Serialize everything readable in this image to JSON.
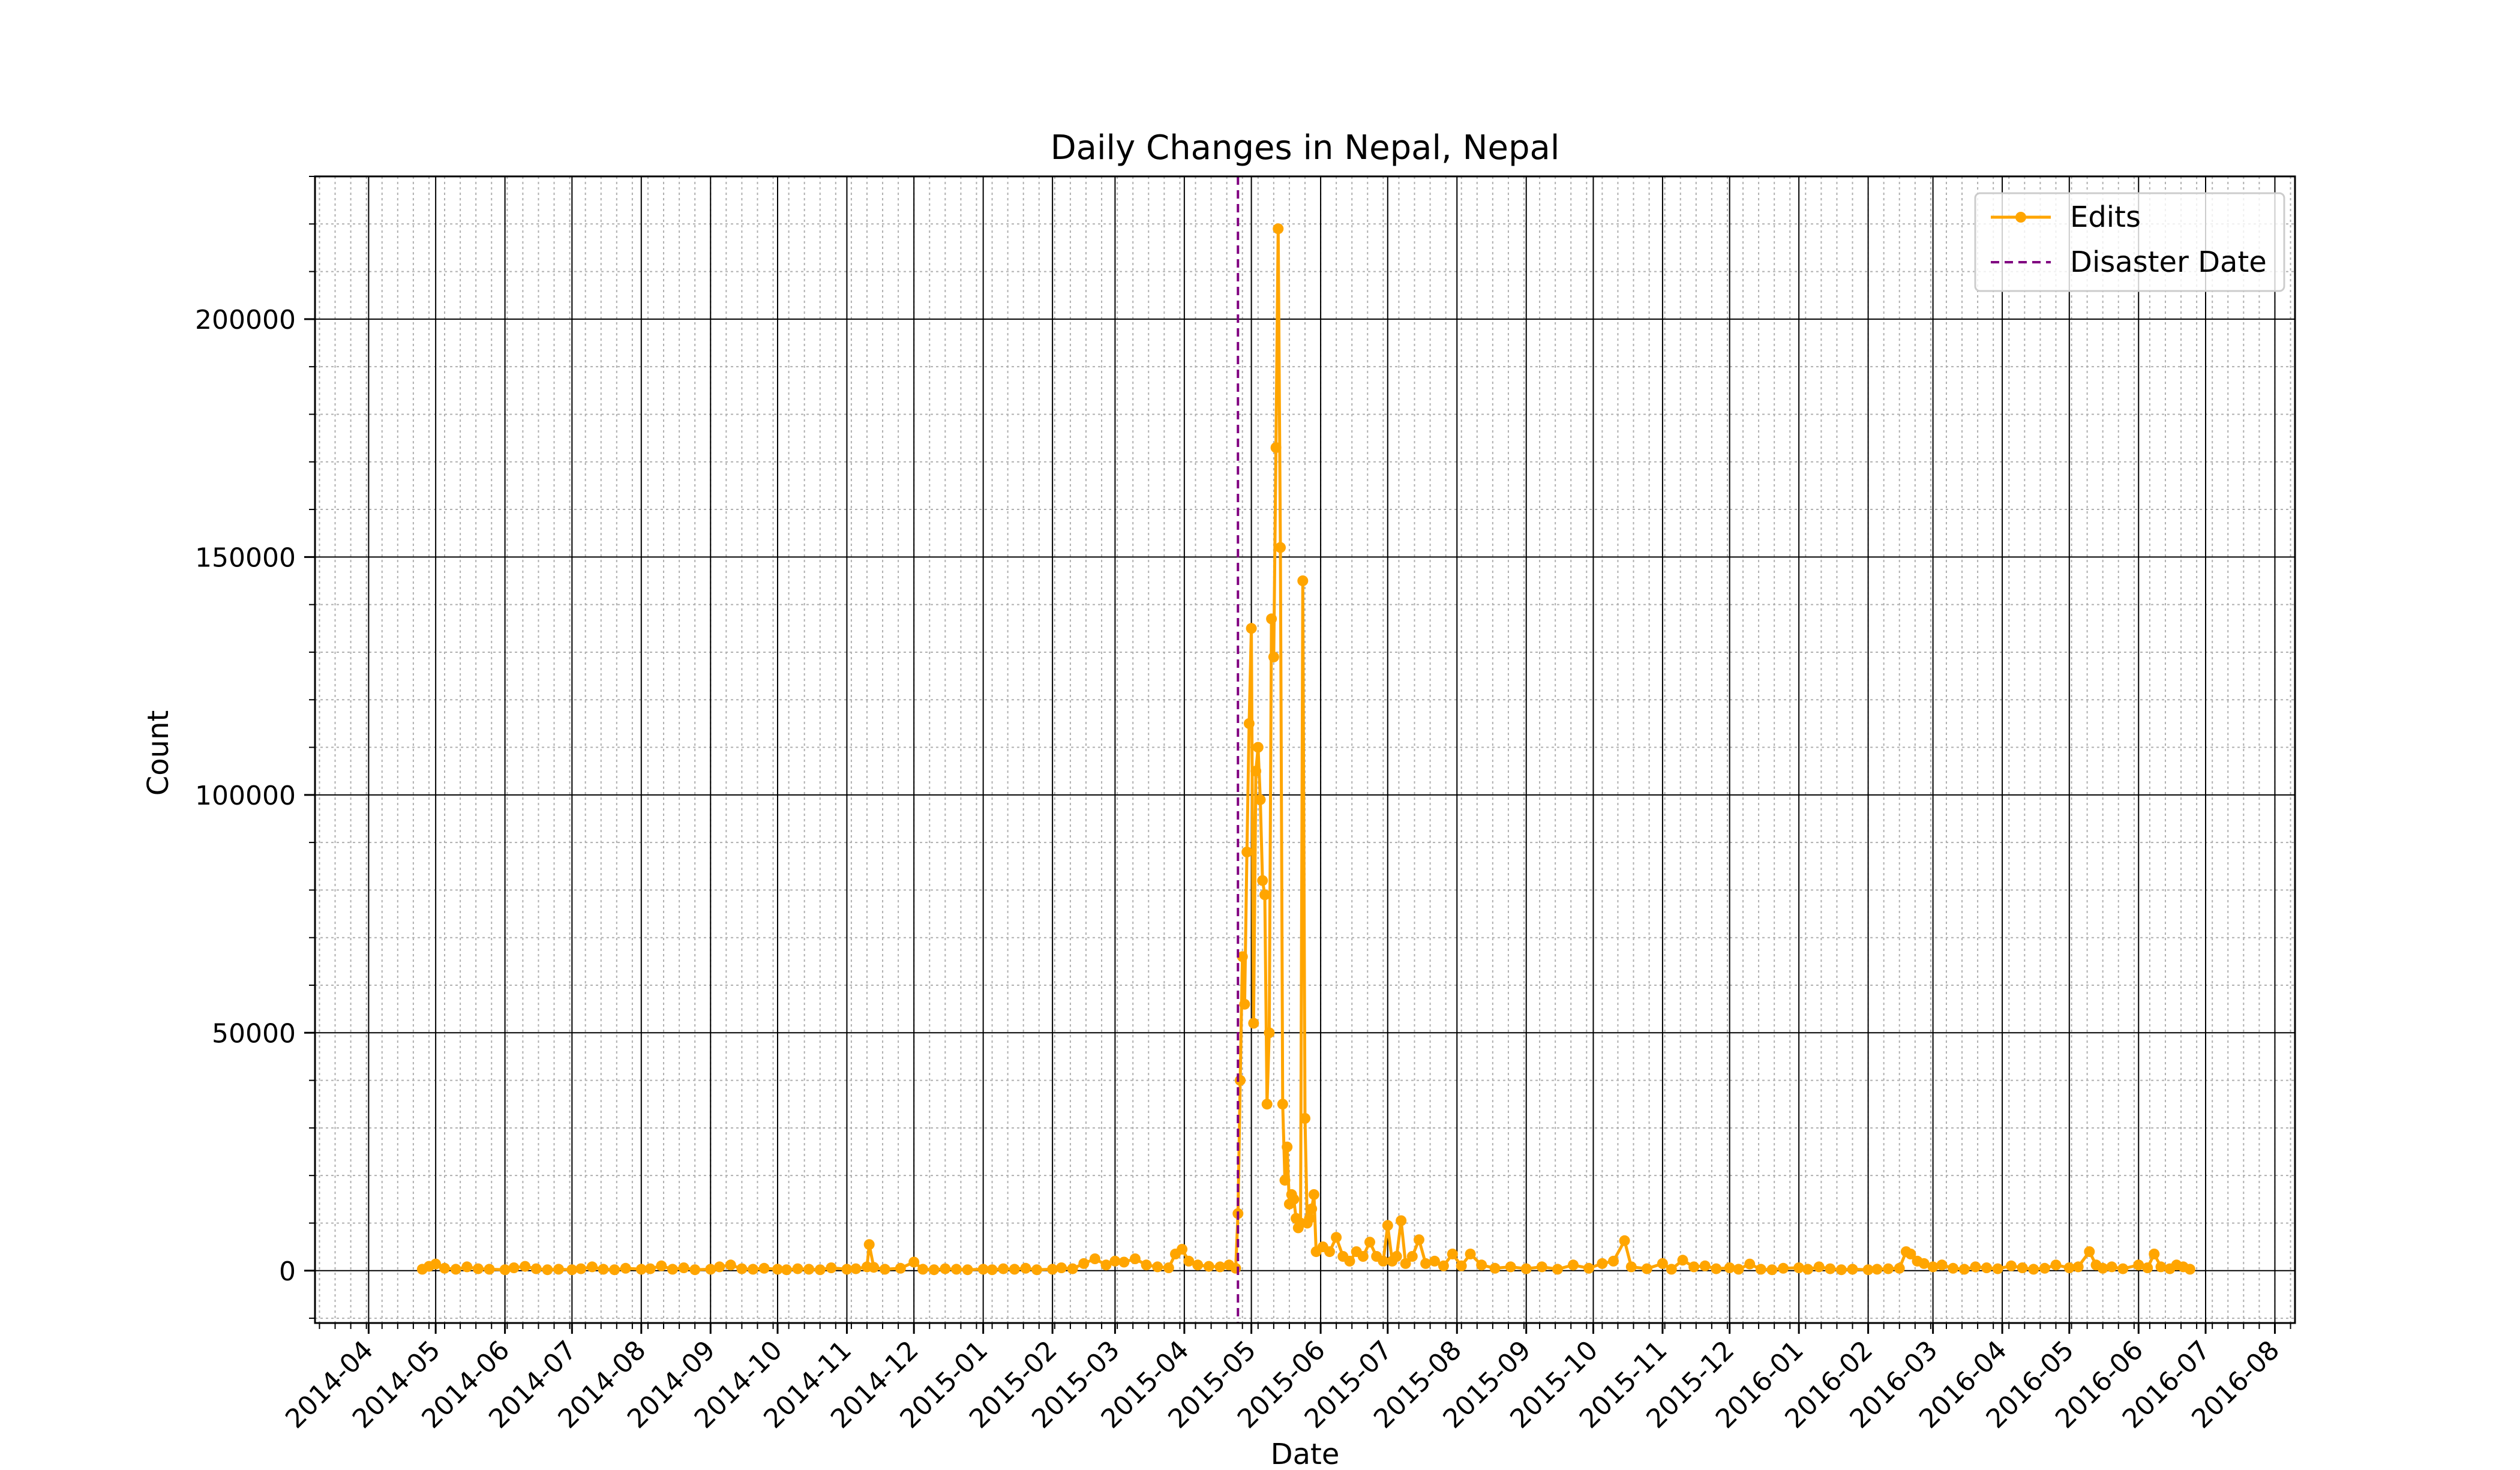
{
  "chart_data": {
    "type": "line",
    "title": "Daily Changes in Nepal, Nepal",
    "xlabel": "Date",
    "ylabel": "Count",
    "xlim": [
      "2014-03-08",
      "2016-08-10"
    ],
    "ylim": [
      -11000,
      230000
    ],
    "x_ticks": [
      "2014-04",
      "2014-05",
      "2014-06",
      "2014-07",
      "2014-08",
      "2014-09",
      "2014-10",
      "2014-11",
      "2014-12",
      "2015-01",
      "2015-02",
      "2015-03",
      "2015-04",
      "2015-05",
      "2015-06",
      "2015-07",
      "2015-08",
      "2015-09",
      "2015-10",
      "2015-11",
      "2015-12",
      "2016-01",
      "2016-02",
      "2016-03",
      "2016-04",
      "2016-05",
      "2016-06",
      "2016-07",
      "2016-08"
    ],
    "y_ticks": [
      0,
      50000,
      100000,
      150000,
      200000
    ],
    "grid": true,
    "legend_position": "top-right",
    "colors": {
      "edits": "#FFA500",
      "disaster": "#800080"
    },
    "disaster_date": "2015-04-25",
    "series": [
      {
        "name": "Edits",
        "points": [
          [
            "2014-04-25",
            300
          ],
          [
            "2014-04-28",
            900
          ],
          [
            "2014-05-01",
            1400
          ],
          [
            "2014-05-05",
            500
          ],
          [
            "2014-05-10",
            300
          ],
          [
            "2014-05-15",
            800
          ],
          [
            "2014-05-20",
            400
          ],
          [
            "2014-05-25",
            300
          ],
          [
            "2014-06-01",
            200
          ],
          [
            "2014-06-05",
            600
          ],
          [
            "2014-06-10",
            900
          ],
          [
            "2014-06-15",
            400
          ],
          [
            "2014-06-20",
            200
          ],
          [
            "2014-06-25",
            300
          ],
          [
            "2014-07-01",
            200
          ],
          [
            "2014-07-05",
            400
          ],
          [
            "2014-07-10",
            800
          ],
          [
            "2014-07-15",
            300
          ],
          [
            "2014-07-20",
            200
          ],
          [
            "2014-07-25",
            500
          ],
          [
            "2014-08-01",
            300
          ],
          [
            "2014-08-05",
            400
          ],
          [
            "2014-08-10",
            1000
          ],
          [
            "2014-08-15",
            300
          ],
          [
            "2014-08-20",
            600
          ],
          [
            "2014-08-25",
            200
          ],
          [
            "2014-09-01",
            300
          ],
          [
            "2014-09-05",
            800
          ],
          [
            "2014-09-10",
            1200
          ],
          [
            "2014-09-15",
            400
          ],
          [
            "2014-09-20",
            300
          ],
          [
            "2014-09-25",
            500
          ],
          [
            "2014-10-01",
            300
          ],
          [
            "2014-10-05",
            200
          ],
          [
            "2014-10-10",
            400
          ],
          [
            "2014-10-15",
            300
          ],
          [
            "2014-10-20",
            200
          ],
          [
            "2014-10-25",
            600
          ],
          [
            "2014-11-01",
            300
          ],
          [
            "2014-11-05",
            400
          ],
          [
            "2014-11-10",
            800
          ],
          [
            "2014-11-11",
            5500
          ],
          [
            "2014-11-13",
            700
          ],
          [
            "2014-11-18",
            300
          ],
          [
            "2014-11-25",
            500
          ],
          [
            "2014-12-01",
            1800
          ],
          [
            "2014-12-05",
            300
          ],
          [
            "2014-12-10",
            200
          ],
          [
            "2014-12-15",
            400
          ],
          [
            "2014-12-20",
            300
          ],
          [
            "2014-12-25",
            200
          ],
          [
            "2015-01-01",
            300
          ],
          [
            "2015-01-05",
            200
          ],
          [
            "2015-01-10",
            400
          ],
          [
            "2015-01-15",
            300
          ],
          [
            "2015-01-20",
            500
          ],
          [
            "2015-01-25",
            200
          ],
          [
            "2015-02-01",
            300
          ],
          [
            "2015-02-05",
            600
          ],
          [
            "2015-02-10",
            400
          ],
          [
            "2015-02-15",
            1500
          ],
          [
            "2015-02-20",
            2500
          ],
          [
            "2015-02-25",
            1200
          ],
          [
            "2015-03-01",
            2000
          ],
          [
            "2015-03-05",
            1800
          ],
          [
            "2015-03-10",
            2500
          ],
          [
            "2015-03-15",
            1200
          ],
          [
            "2015-03-20",
            800
          ],
          [
            "2015-03-25",
            600
          ],
          [
            "2015-03-28",
            3500
          ],
          [
            "2015-03-31",
            4500
          ],
          [
            "2015-04-03",
            2000
          ],
          [
            "2015-04-07",
            1200
          ],
          [
            "2015-04-12",
            900
          ],
          [
            "2015-04-17",
            800
          ],
          [
            "2015-04-21",
            1200
          ],
          [
            "2015-04-24",
            500
          ],
          [
            "2015-04-25",
            12000
          ],
          [
            "2015-04-26",
            40000
          ],
          [
            "2015-04-27",
            66000
          ],
          [
            "2015-04-28",
            56000
          ],
          [
            "2015-04-29",
            88000
          ],
          [
            "2015-04-30",
            115000
          ],
          [
            "2015-05-01",
            135000
          ],
          [
            "2015-05-02",
            52000
          ],
          [
            "2015-05-03",
            105000
          ],
          [
            "2015-05-04",
            110000
          ],
          [
            "2015-05-05",
            99000
          ],
          [
            "2015-05-06",
            82000
          ],
          [
            "2015-05-07",
            79000
          ],
          [
            "2015-05-08",
            35000
          ],
          [
            "2015-05-09",
            50000
          ],
          [
            "2015-05-10",
            137000
          ],
          [
            "2015-05-11",
            129000
          ],
          [
            "2015-05-12",
            173000
          ],
          [
            "2015-05-13",
            219000
          ],
          [
            "2015-05-14",
            152000
          ],
          [
            "2015-05-15",
            35000
          ],
          [
            "2015-05-16",
            19000
          ],
          [
            "2015-05-17",
            26000
          ],
          [
            "2015-05-18",
            14000
          ],
          [
            "2015-05-19",
            16000
          ],
          [
            "2015-05-20",
            15000
          ],
          [
            "2015-05-21",
            11000
          ],
          [
            "2015-05-22",
            9000
          ],
          [
            "2015-05-23",
            10000
          ],
          [
            "2015-05-24",
            145000
          ],
          [
            "2015-05-25",
            32000
          ],
          [
            "2015-05-26",
            10000
          ],
          [
            "2015-05-27",
            11000
          ],
          [
            "2015-05-28",
            13000
          ],
          [
            "2015-05-29",
            16000
          ],
          [
            "2015-05-30",
            4000
          ],
          [
            "2015-06-02",
            5000
          ],
          [
            "2015-06-05",
            4000
          ],
          [
            "2015-06-08",
            7000
          ],
          [
            "2015-06-11",
            3000
          ],
          [
            "2015-06-14",
            2000
          ],
          [
            "2015-06-17",
            4000
          ],
          [
            "2015-06-20",
            3000
          ],
          [
            "2015-06-23",
            6000
          ],
          [
            "2015-06-26",
            3000
          ],
          [
            "2015-06-29",
            2000
          ],
          [
            "2015-07-01",
            9500
          ],
          [
            "2015-07-03",
            2000
          ],
          [
            "2015-07-05",
            3000
          ],
          [
            "2015-07-07",
            10500
          ],
          [
            "2015-07-09",
            1500
          ],
          [
            "2015-07-12",
            3000
          ],
          [
            "2015-07-15",
            6500
          ],
          [
            "2015-07-18",
            1500
          ],
          [
            "2015-07-22",
            2000
          ],
          [
            "2015-07-26",
            1000
          ],
          [
            "2015-07-30",
            3500
          ],
          [
            "2015-08-03",
            1000
          ],
          [
            "2015-08-07",
            3500
          ],
          [
            "2015-08-12",
            1200
          ],
          [
            "2015-08-18",
            500
          ],
          [
            "2015-08-25",
            800
          ],
          [
            "2015-09-01",
            400
          ],
          [
            "2015-09-08",
            800
          ],
          [
            "2015-09-15",
            300
          ],
          [
            "2015-09-22",
            1200
          ],
          [
            "2015-09-29",
            500
          ],
          [
            "2015-10-05",
            1500
          ],
          [
            "2015-10-10",
            2000
          ],
          [
            "2015-10-15",
            6300
          ],
          [
            "2015-10-18",
            800
          ],
          [
            "2015-10-25",
            400
          ],
          [
            "2015-11-01",
            1500
          ],
          [
            "2015-11-05",
            300
          ],
          [
            "2015-11-10",
            2200
          ],
          [
            "2015-11-15",
            800
          ],
          [
            "2015-11-20",
            1000
          ],
          [
            "2015-11-25",
            400
          ],
          [
            "2015-12-01",
            600
          ],
          [
            "2015-12-05",
            300
          ],
          [
            "2015-12-10",
            1400
          ],
          [
            "2015-12-15",
            300
          ],
          [
            "2015-12-20",
            200
          ],
          [
            "2015-12-25",
            500
          ],
          [
            "2016-01-01",
            600
          ],
          [
            "2016-01-05",
            300
          ],
          [
            "2016-01-10",
            800
          ],
          [
            "2016-01-15",
            400
          ],
          [
            "2016-01-20",
            200
          ],
          [
            "2016-01-25",
            300
          ],
          [
            "2016-02-01",
            200
          ],
          [
            "2016-02-05",
            300
          ],
          [
            "2016-02-10",
            400
          ],
          [
            "2016-02-15",
            500
          ],
          [
            "2016-02-18",
            4000
          ],
          [
            "2016-02-20",
            3500
          ],
          [
            "2016-02-23",
            2000
          ],
          [
            "2016-02-26",
            1500
          ],
          [
            "2016-03-01",
            800
          ],
          [
            "2016-03-05",
            1200
          ],
          [
            "2016-03-10",
            500
          ],
          [
            "2016-03-15",
            300
          ],
          [
            "2016-03-20",
            800
          ],
          [
            "2016-03-25",
            600
          ],
          [
            "2016-03-30",
            400
          ],
          [
            "2016-04-05",
            1000
          ],
          [
            "2016-04-10",
            600
          ],
          [
            "2016-04-15",
            300
          ],
          [
            "2016-04-20",
            500
          ],
          [
            "2016-04-25",
            1200
          ],
          [
            "2016-05-01",
            600
          ],
          [
            "2016-05-05",
            800
          ],
          [
            "2016-05-10",
            4000
          ],
          [
            "2016-05-13",
            1200
          ],
          [
            "2016-05-16",
            500
          ],
          [
            "2016-05-20",
            800
          ],
          [
            "2016-05-25",
            400
          ],
          [
            "2016-06-01",
            1200
          ],
          [
            "2016-06-05",
            600
          ],
          [
            "2016-06-08",
            3500
          ],
          [
            "2016-06-11",
            800
          ],
          [
            "2016-06-15",
            400
          ],
          [
            "2016-06-18",
            1200
          ],
          [
            "2016-06-21",
            800
          ],
          [
            "2016-06-24",
            300
          ]
        ]
      },
      {
        "name": "Disaster Date",
        "style": "dashed-vertical",
        "x": "2015-04-25"
      }
    ]
  }
}
